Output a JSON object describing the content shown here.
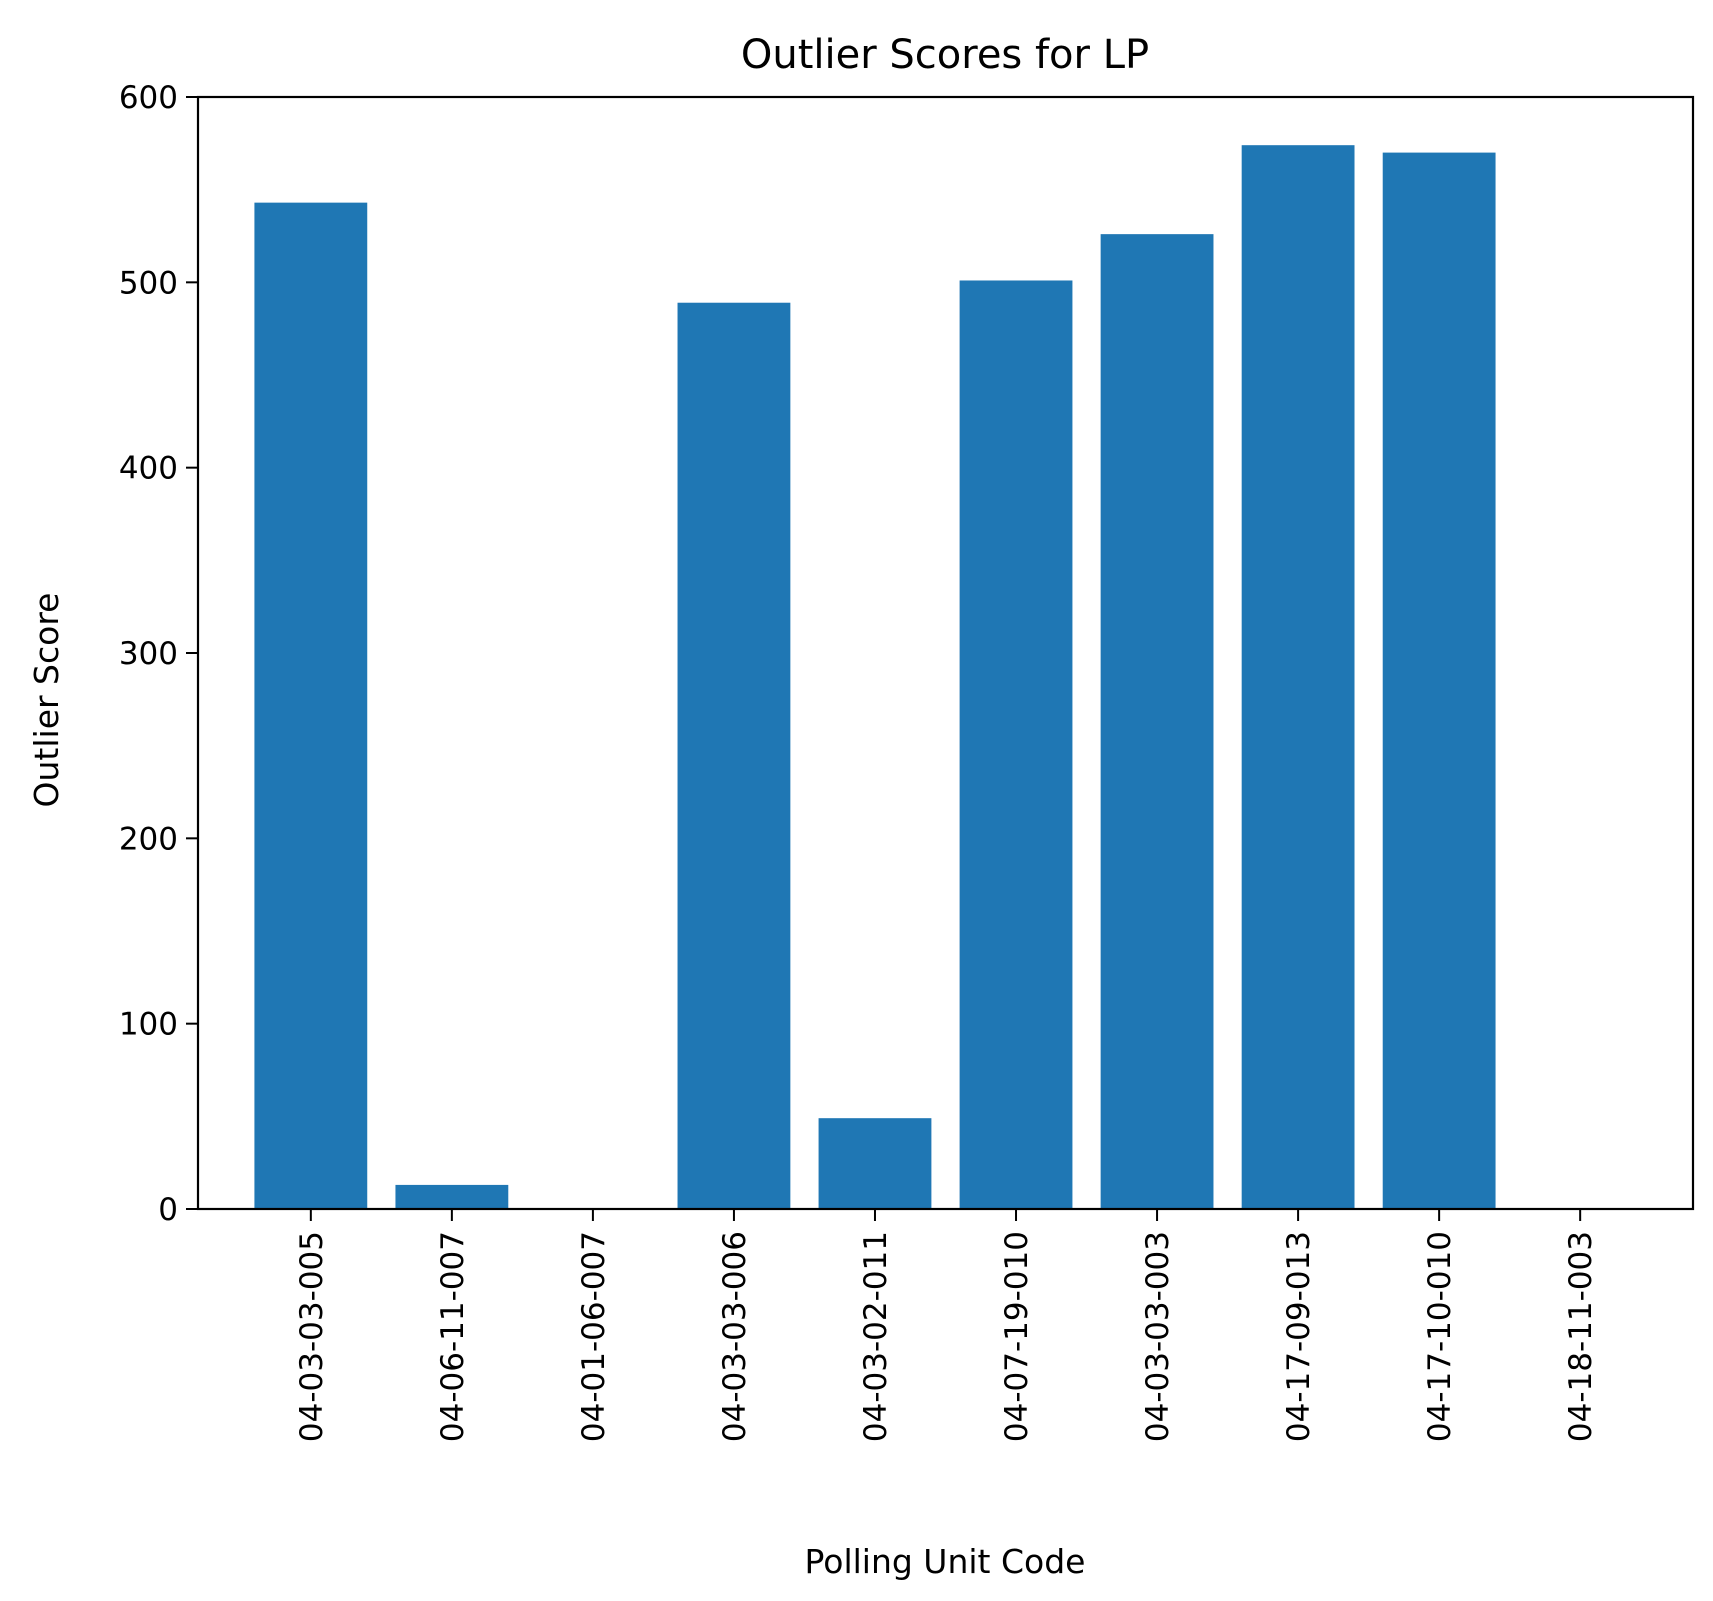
{
  "chart_data": {
    "type": "bar",
    "title": "Outlier Scores for LP",
    "xlabel": "Polling Unit Code",
    "ylabel": "Outlier Score",
    "categories": [
      "04-03-03-005",
      "04-06-11-007",
      "04-01-06-007",
      "04-03-03-006",
      "04-03-02-011",
      "04-07-19-010",
      "04-03-03-003",
      "04-17-09-013",
      "04-17-10-010",
      "04-18-11-003"
    ],
    "values": [
      543,
      13,
      0,
      489,
      49,
      501,
      526,
      574,
      570,
      0
    ],
    "ylim": [
      0,
      600
    ],
    "yticks": [
      0,
      100,
      200,
      300,
      400,
      500,
      600
    ],
    "bar_color": "#1f77b4",
    "grid": false,
    "legend": "none"
  }
}
